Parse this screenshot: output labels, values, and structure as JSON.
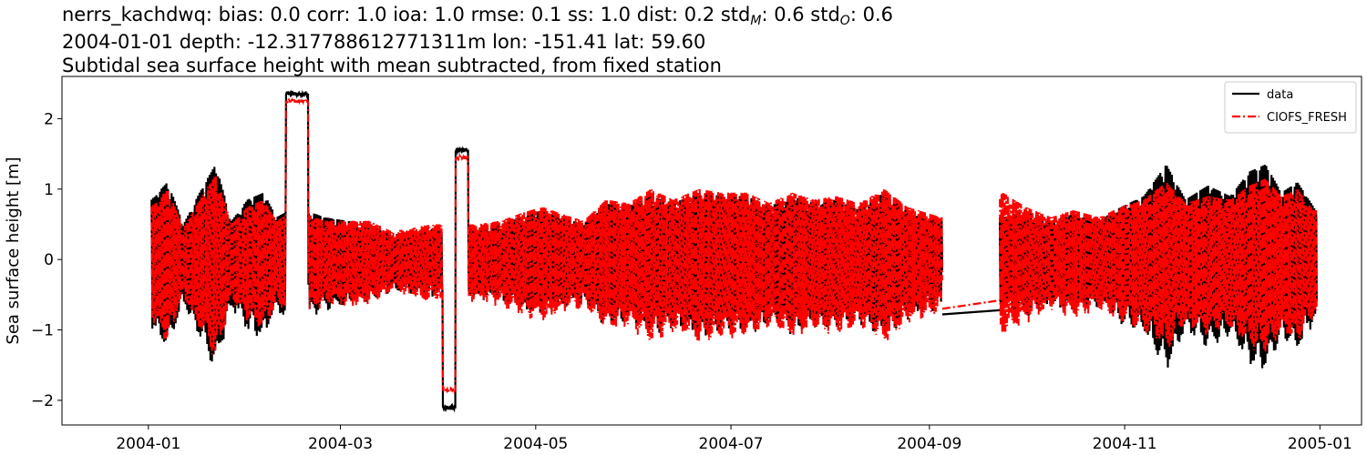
{
  "title": {
    "stats_prefix": "nerrs_kachdwq: bias: 0.0  corr: 1.0  ioa: 1.0  rmse: 0.1  ss: 1.0  dist: 0.2  std",
    "std_model_sub": "M",
    "std_model_value": ": 0.6  std",
    "std_obs_sub": "O",
    "std_obs_value": ": 0.6",
    "line2": "2004-01-01 depth: -12.317788612771311m lon: -151.41 lat: 59.60",
    "line3": "Subtidal sea surface height with mean subtracted, from fixed station"
  },
  "chart_data": {
    "type": "line",
    "ylabel": "Sea surface height [m]",
    "xlim": [
      "2003-12-05",
      "2005-01-14"
    ],
    "ylim": [
      -2.35,
      2.6
    ],
    "x_ticks": [
      "2004-01-01",
      "2004-03-01",
      "2004-05-01",
      "2004-07-01",
      "2004-09-01",
      "2004-11-01",
      "2005-01-01"
    ],
    "x_tick_labels": [
      "2004-01",
      "2004-03",
      "2004-05",
      "2004-07",
      "2004-09",
      "2004-11",
      "2005-01"
    ],
    "y_ticks": [
      -2,
      -1,
      0,
      1,
      2
    ],
    "y_tick_labels": [
      "−2",
      "−1",
      "0",
      "1",
      "2"
    ],
    "grid": false,
    "legend_position": "top-right",
    "series": [
      {
        "name": "data",
        "color": "#000000",
        "style": "solid",
        "envelope_points": [
          [
            "2004-01-02",
            0.85
          ],
          [
            "2004-01-07",
            1.1
          ],
          [
            "2004-01-12",
            0.5
          ],
          [
            "2004-01-17",
            0.95
          ],
          [
            "2004-01-22",
            1.35
          ],
          [
            "2004-01-27",
            0.55
          ],
          [
            "2004-02-01",
            0.85
          ],
          [
            "2004-02-06",
            0.95
          ],
          [
            "2004-02-10",
            0.6
          ],
          [
            "2004-02-16",
            0.75
          ],
          [
            "2004-02-25",
            0.6
          ],
          [
            "2004-03-03",
            0.55
          ],
          [
            "2004-03-10",
            0.5
          ],
          [
            "2004-03-17",
            0.35
          ],
          [
            "2004-03-24",
            0.4
          ],
          [
            "2004-03-29",
            0.45
          ],
          [
            "2004-04-13",
            0.45
          ],
          [
            "2004-04-20",
            0.5
          ],
          [
            "2004-04-26",
            0.6
          ],
          [
            "2004-05-03",
            0.7
          ],
          [
            "2004-05-09",
            0.6
          ],
          [
            "2004-05-16",
            0.5
          ],
          [
            "2004-05-23",
            0.8
          ],
          [
            "2004-05-30",
            0.75
          ],
          [
            "2004-06-06",
            0.9
          ],
          [
            "2004-06-13",
            0.8
          ],
          [
            "2004-06-21",
            0.95
          ],
          [
            "2004-06-28",
            0.9
          ],
          [
            "2004-07-06",
            0.9
          ],
          [
            "2004-07-13",
            0.75
          ],
          [
            "2004-07-20",
            0.9
          ],
          [
            "2004-07-27",
            0.8
          ],
          [
            "2004-08-03",
            0.85
          ],
          [
            "2004-08-10",
            0.75
          ],
          [
            "2004-08-18",
            0.95
          ],
          [
            "2004-08-25",
            0.7
          ],
          [
            "2004-09-01",
            0.6
          ],
          [
            "2004-09-05",
            0.55
          ],
          [
            "2004-09-24",
            0.6
          ],
          [
            "2004-10-01",
            0.7
          ],
          [
            "2004-10-09",
            0.55
          ],
          [
            "2004-10-16",
            0.65
          ],
          [
            "2004-10-24",
            0.55
          ],
          [
            "2004-10-31",
            0.75
          ],
          [
            "2004-11-07",
            0.9
          ],
          [
            "2004-11-14",
            1.35
          ],
          [
            "2004-11-20",
            0.85
          ],
          [
            "2004-11-27",
            1.05
          ],
          [
            "2004-12-04",
            0.9
          ],
          [
            "2004-12-10",
            1.25
          ],
          [
            "2004-12-15",
            1.35
          ],
          [
            "2004-12-20",
            0.95
          ],
          [
            "2004-12-25",
            1.1
          ],
          [
            "2004-12-30",
            0.75
          ]
        ],
        "events": [
          {
            "x_start": "2004-02-13",
            "x_end": "2004-02-20",
            "y": 2.35
          },
          {
            "x_start": "2004-04-02",
            "x_end": "2004-04-06",
            "y": -2.1
          },
          {
            "x_start": "2004-04-06",
            "x_end": "2004-04-10",
            "y": 1.55
          },
          {
            "x_start": "2004-09-05",
            "x_end": "2004-09-23",
            "y_start": -0.78,
            "y_end": -0.72
          }
        ],
        "gap": [
          "2004-09-05",
          "2004-09-23"
        ]
      },
      {
        "name": "CIOFS_FRESH",
        "color": "#ff0000",
        "style": "dashdot",
        "envelope_points": [
          [
            "2004-01-02",
            0.75
          ],
          [
            "2004-01-07",
            1.0
          ],
          [
            "2004-01-12",
            0.45
          ],
          [
            "2004-01-17",
            0.85
          ],
          [
            "2004-01-22",
            1.2
          ],
          [
            "2004-01-27",
            0.5
          ],
          [
            "2004-02-01",
            0.75
          ],
          [
            "2004-02-06",
            0.85
          ],
          [
            "2004-02-10",
            0.55
          ],
          [
            "2004-02-16",
            0.7
          ],
          [
            "2004-02-25",
            0.55
          ],
          [
            "2004-03-03",
            0.55
          ],
          [
            "2004-03-10",
            0.55
          ],
          [
            "2004-03-17",
            0.4
          ],
          [
            "2004-03-24",
            0.45
          ],
          [
            "2004-03-29",
            0.5
          ],
          [
            "2004-04-13",
            0.5
          ],
          [
            "2004-04-20",
            0.55
          ],
          [
            "2004-04-26",
            0.65
          ],
          [
            "2004-05-03",
            0.75
          ],
          [
            "2004-05-09",
            0.65
          ],
          [
            "2004-05-16",
            0.55
          ],
          [
            "2004-05-23",
            0.85
          ],
          [
            "2004-05-30",
            0.8
          ],
          [
            "2004-06-06",
            1.0
          ],
          [
            "2004-06-13",
            0.85
          ],
          [
            "2004-06-21",
            1.0
          ],
          [
            "2004-06-28",
            0.95
          ],
          [
            "2004-07-06",
            0.95
          ],
          [
            "2004-07-13",
            0.8
          ],
          [
            "2004-07-20",
            0.95
          ],
          [
            "2004-07-27",
            0.85
          ],
          [
            "2004-08-03",
            0.9
          ],
          [
            "2004-08-10",
            0.8
          ],
          [
            "2004-08-18",
            1.0
          ],
          [
            "2004-08-25",
            0.75
          ],
          [
            "2004-09-01",
            0.65
          ],
          [
            "2004-09-05",
            0.6
          ],
          [
            "2004-09-24",
            0.95
          ],
          [
            "2004-10-01",
            0.75
          ],
          [
            "2004-10-09",
            0.6
          ],
          [
            "2004-10-16",
            0.7
          ],
          [
            "2004-10-24",
            0.6
          ],
          [
            "2004-10-31",
            0.75
          ],
          [
            "2004-11-07",
            0.85
          ],
          [
            "2004-11-14",
            1.1
          ],
          [
            "2004-11-20",
            0.8
          ],
          [
            "2004-11-27",
            0.9
          ],
          [
            "2004-12-04",
            0.85
          ],
          [
            "2004-12-10",
            1.05
          ],
          [
            "2004-12-15",
            1.15
          ],
          [
            "2004-12-20",
            0.9
          ],
          [
            "2004-12-25",
            1.0
          ],
          [
            "2004-12-30",
            0.7
          ]
        ],
        "events": [
          {
            "x_start": "2004-02-13",
            "x_end": "2004-02-20",
            "y": 2.25
          },
          {
            "x_start": "2004-04-02",
            "x_end": "2004-04-06",
            "y": -1.85
          },
          {
            "x_start": "2004-04-06",
            "x_end": "2004-04-10",
            "y": 1.45
          },
          {
            "x_start": "2004-09-05",
            "x_end": "2004-09-23",
            "y_start": -0.7,
            "y_end": -0.58
          }
        ],
        "gap": [
          "2004-09-05",
          "2004-09-23"
        ]
      }
    ]
  }
}
